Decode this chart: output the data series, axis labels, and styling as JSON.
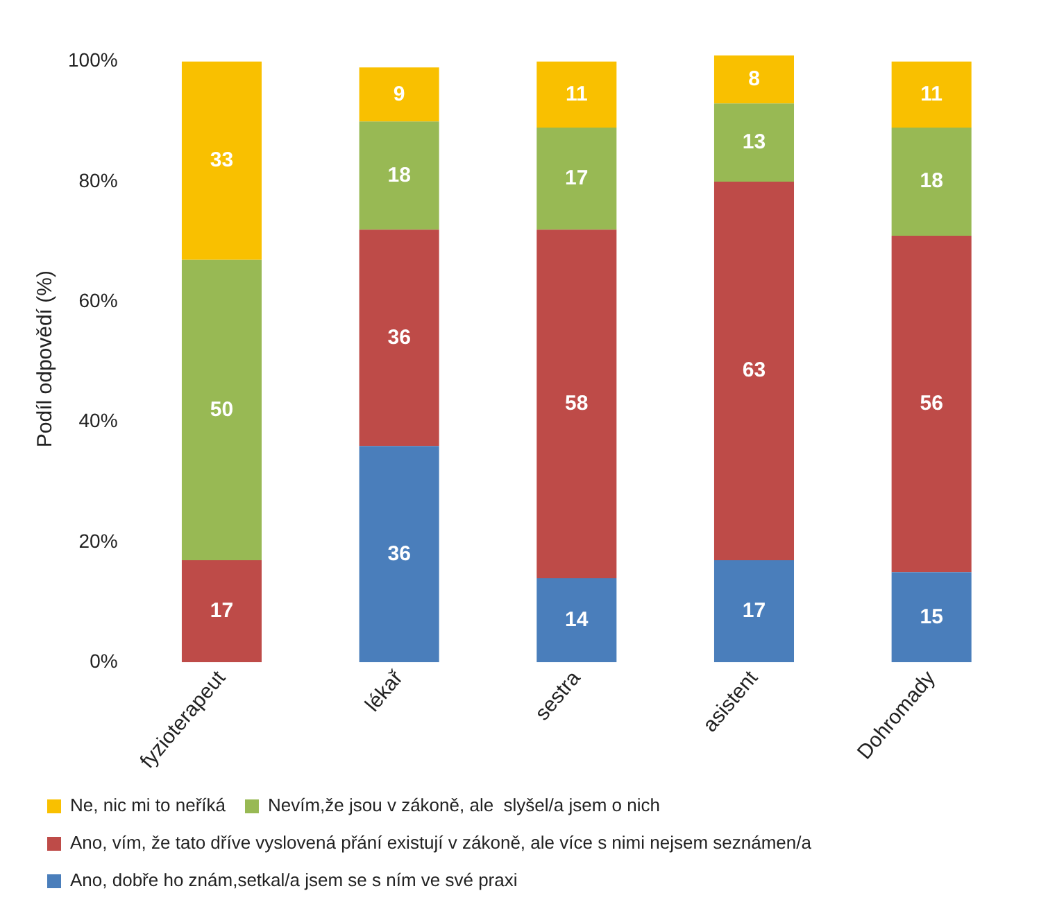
{
  "chart_data": {
    "type": "bar",
    "stacked": true,
    "ylabel": "Podíl odpovědí (%)",
    "categories": [
      "fyzioterapeut",
      "lékař",
      "sestra",
      "asistent",
      "Dohromady"
    ],
    "series": [
      {
        "name": "Ano, dobře ho znám,setkal/a jsem se s ním ve své praxi",
        "color": "#4a7ebb",
        "values": [
          null,
          36,
          14,
          17,
          15
        ]
      },
      {
        "name": "Ano, vím, že tato dříve vyslovená přání existují v zákoně, ale více s nimi nejsem seznámen/a",
        "color": "#be4b48",
        "values": [
          17,
          36,
          58,
          63,
          56
        ]
      },
      {
        "name": "Nevím,že jsou v zákoně, ale  slyšel/a jsem o nich",
        "color": "#98b954",
        "values": [
          50,
          18,
          17,
          13,
          18
        ]
      },
      {
        "name": "Ne, nic mi to neříká",
        "color": "#f9c000",
        "values": [
          33,
          9,
          11,
          8,
          11
        ]
      }
    ],
    "ylim": [
      0,
      101
    ],
    "yticks": [
      {
        "value": 0,
        "label": "0%"
      },
      {
        "value": 20,
        "label": "20%"
      },
      {
        "value": 40,
        "label": "40%"
      },
      {
        "value": 60,
        "label": "60%"
      },
      {
        "value": 80,
        "label": "80%"
      },
      {
        "value": 100,
        "label": "100%"
      }
    ],
    "grid": false,
    "legend": "bottom",
    "data_labels": true
  }
}
